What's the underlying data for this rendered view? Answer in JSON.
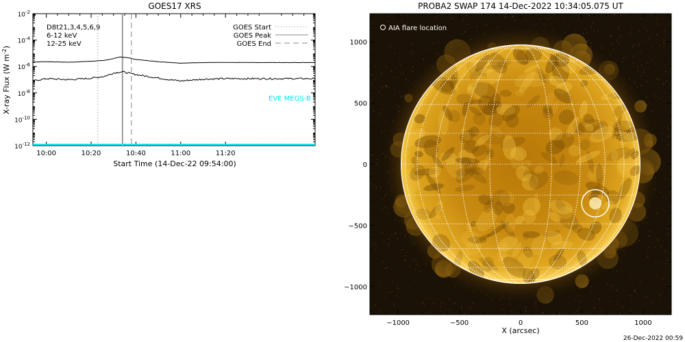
{
  "chart_data": [
    {
      "type": "line",
      "title": "GOES17 XRS",
      "xlabel": "Start Time (14-Dec-22 09:54:00)",
      "ylabel": "X-ray Flux (W m",
      "ylabel_superscript": "-2",
      "ylabel_close": ")",
      "y_scale": "log",
      "ylim": [
        1e-12,
        0.01
      ],
      "xlim": [
        "09:54",
        "12:00"
      ],
      "x_ticks": [
        "10:00",
        "10:20",
        "10:40",
        "11:00",
        "11:20"
      ],
      "y_tick_mantissa": "10",
      "y_tick_exponents": [
        "-2",
        "-4",
        "-6",
        "-8",
        "-10",
        "-12"
      ],
      "channel_legend": [
        {
          "label": "D8t21,3,4,5,6,9",
          "color": "#000000"
        },
        {
          "label": "6-12 keV",
          "color": "#e000e0"
        },
        {
          "label": "12-25 keV",
          "color": "#00c000"
        }
      ],
      "line_legend": [
        {
          "label": "GOES Start",
          "style": "dotted"
        },
        {
          "label": "GOES Peak",
          "style": "solid"
        },
        {
          "label": "GOES End",
          "style": "dashed"
        }
      ],
      "markers": {
        "start": "10:23",
        "peak": "10:34",
        "end": "10:38"
      },
      "eve_label": "EVE MEGS-B",
      "eve_color": "#00e5ee",
      "series": [
        {
          "channel": "long",
          "color": "#000000",
          "points": [
            [
              "09:54",
              2.2e-06
            ],
            [
              "10:00",
              2.3e-06
            ],
            [
              "10:10",
              2.1e-06
            ],
            [
              "10:20",
              2.5e-06
            ],
            [
              "10:26",
              2.9e-06
            ],
            [
              "10:30",
              4e-06
            ],
            [
              "10:33",
              5.2e-06
            ],
            [
              "10:36",
              4.8e-06
            ],
            [
              "10:40",
              3.4e-06
            ],
            [
              "10:50",
              2.3e-06
            ],
            [
              "11:00",
              1.8e-06
            ],
            [
              "11:10",
              2e-06
            ],
            [
              "11:20",
              2e-06
            ],
            [
              "11:40",
              2e-06
            ],
            [
              "12:00",
              2e-06
            ]
          ]
        },
        {
          "channel": "short",
          "color": "#000000",
          "points": [
            [
              "09:54",
              8e-08
            ],
            [
              "10:00",
              1.2e-07
            ],
            [
              "10:10",
              1e-07
            ],
            [
              "10:20",
              1.3e-07
            ],
            [
              "10:26",
              1.8e-07
            ],
            [
              "10:30",
              3.2e-07
            ],
            [
              "10:34",
              4e-07
            ],
            [
              "10:38",
              2.8e-07
            ],
            [
              "10:45",
              1.8e-07
            ],
            [
              "10:55",
              1e-07
            ],
            [
              "11:00",
              8e-08
            ],
            [
              "11:10",
              1.1e-07
            ],
            [
              "11:20",
              1.2e-07
            ],
            [
              "11:40",
              1.2e-07
            ],
            [
              "12:00",
              1.2e-07
            ]
          ]
        },
        {
          "channel": "baseline",
          "color": "#00e5ee",
          "points": [
            [
              "09:54",
              1e-12
            ],
            [
              "12:00",
              1e-12
            ]
          ]
        }
      ]
    },
    {
      "type": "image",
      "title": "PROBA2 SWAP 174 14-Dec-2022 10:34:05.075 UT",
      "xlabel": "X (arcsec)",
      "xlim": [
        -1230,
        1230
      ],
      "ylim": [
        -1230,
        1230
      ],
      "x_ticks": [
        -1000,
        -500,
        0,
        500,
        1000
      ],
      "y_ticks": [
        -1000,
        -500,
        0,
        500,
        1000
      ],
      "grid_spacing_deg": 15,
      "flare_label": "AIA flare location",
      "flare_location": {
        "x": 610,
        "y": -320
      },
      "solar_radius_arcsec": 975,
      "footer_date": "26-Dec-2022 00:59"
    }
  ]
}
